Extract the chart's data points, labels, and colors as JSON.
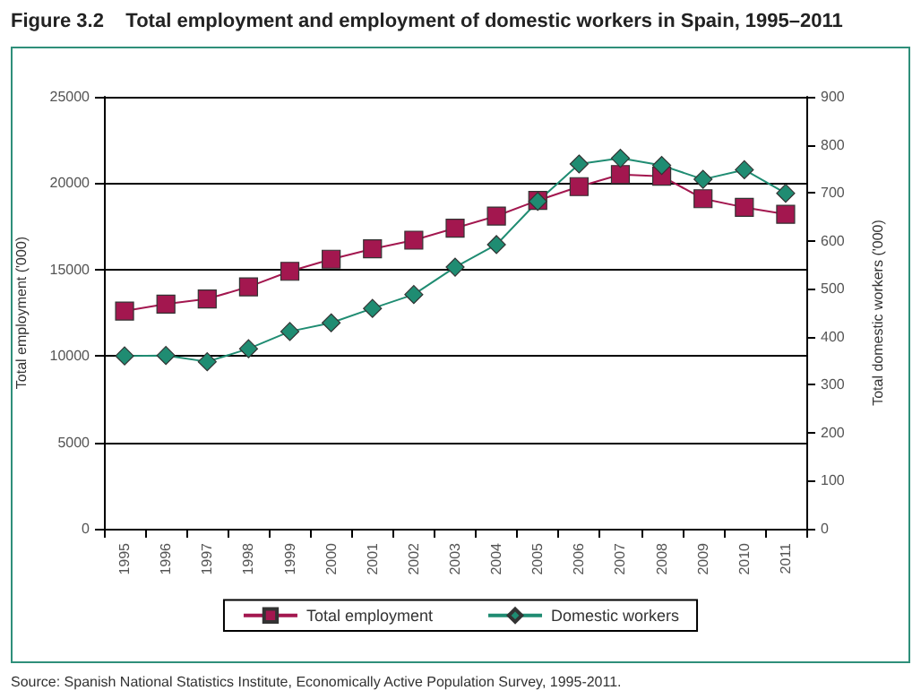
{
  "chart_data": {
    "type": "line",
    "title": "Figure 3.2    Total employment and employment of domestic workers in Spain, 1995–2011",
    "categories": [
      "1995",
      "1996",
      "1997",
      "1998",
      "1999",
      "2000",
      "2001",
      "2002",
      "2003",
      "2004",
      "2005",
      "2006",
      "2007",
      "2008",
      "2009",
      "2010",
      "2011"
    ],
    "series": [
      {
        "name": "Total employment",
        "color": "#a3174f",
        "marker": "square",
        "values": [
          12600,
          13000,
          13300,
          14000,
          14900,
          15600,
          16200,
          16700,
          17400,
          18100,
          19000,
          19800,
          20500,
          20400,
          19100,
          18600,
          18200
        ]
      },
      {
        "name": "Domestic workers",
        "color": "#1f8c72",
        "marker": "diamond",
        "axis": "y2",
        "values": [
          360,
          361,
          348,
          375,
          411,
          429,
          459,
          488,
          545,
          592,
          682,
          760,
          772,
          757,
          728,
          748,
          699
        ]
      }
    ],
    "ylabel": "Total employment ('000)",
    "y2label": "Total domestic workers ('000)",
    "ylim": [
      0,
      25000
    ],
    "yticks": [
      0,
      5000,
      10000,
      15000,
      20000,
      25000
    ],
    "y2lim": [
      0,
      900
    ],
    "y2ticks": [
      0,
      100,
      200,
      300,
      400,
      500,
      600,
      700,
      800,
      900
    ],
    "grid": "y",
    "legend": "bottom",
    "annotations": [
      "Source: Spanish National Statistics Institute, Economically Active Population Survey, 1995-2011."
    ]
  }
}
